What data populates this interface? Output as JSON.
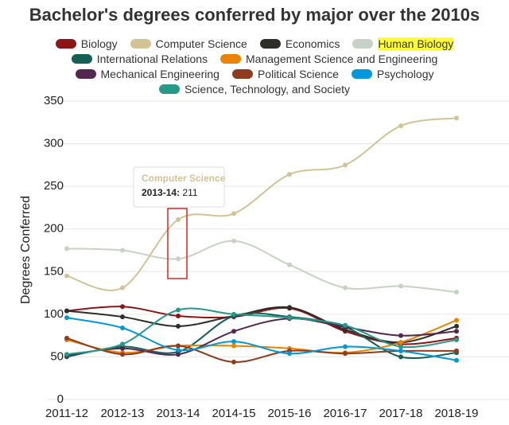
{
  "chart_data": {
    "type": "line",
    "title": "Bachelor's degrees conferred by major over the 2010s",
    "y_label": "Degrees Conferred",
    "categories": [
      "2011-12",
      "2012-13",
      "2013-14",
      "2014-15",
      "2015-16",
      "2016-17",
      "2017-18",
      "2018-19"
    ],
    "series": [
      {
        "name": "Biology",
        "color": "#8c1515",
        "values": [
          104,
          109,
          98,
          97,
          107,
          80,
          65,
          72
        ]
      },
      {
        "name": "Computer Science",
        "color": "#d2c295",
        "values": [
          145,
          131,
          211,
          218,
          264,
          275,
          321,
          330
        ]
      },
      {
        "name": "Economics",
        "color": "#2e2d29",
        "values": [
          104,
          97,
          86,
          98,
          108,
          82,
          67,
          86
        ]
      },
      {
        "name": "Human Biology",
        "color": "#c7d1c5",
        "values": [
          177,
          175,
          165,
          186,
          158,
          131,
          133,
          126
        ]
      },
      {
        "name": "International Relations",
        "color": "#175e54",
        "values": [
          50,
          62,
          56,
          98,
          97,
          85,
          50,
          55
        ]
      },
      {
        "name": "Management Science and Engineering",
        "color": "#e98300",
        "values": [
          70,
          55,
          63,
          63,
          60,
          55,
          67,
          93
        ]
      },
      {
        "name": "Mechanical Engineering",
        "color": "#53284f",
        "values": [
          52,
          60,
          53,
          80,
          95,
          85,
          75,
          80
        ]
      },
      {
        "name": "Political Science",
        "color": "#8d3c1e",
        "values": [
          72,
          53,
          63,
          44,
          57,
          54,
          57,
          57
        ]
      },
      {
        "name": "Psychology",
        "color": "#0098db",
        "values": [
          96,
          84,
          58,
          68,
          54,
          62,
          57,
          46
        ]
      },
      {
        "name": "Science, Technology, and Society",
        "color": "#279989",
        "values": [
          53,
          65,
          105,
          100,
          96,
          87,
          62,
          70
        ]
      }
    ],
    "ylim": [
      0,
      350
    ],
    "yticks": [
      0,
      50,
      100,
      150,
      200,
      250,
      300,
      350
    ],
    "grid": true,
    "legend_highlight_index": 3
  }
}
